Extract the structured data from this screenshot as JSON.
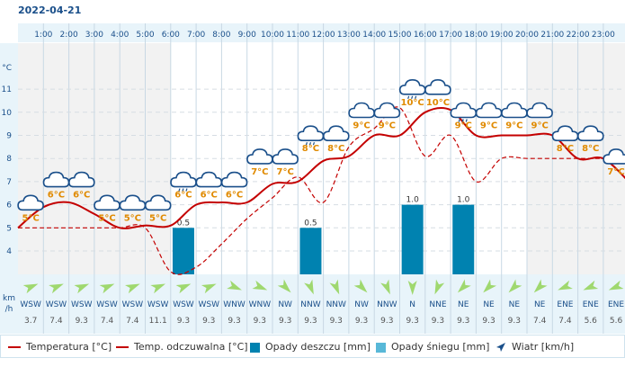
{
  "date": "2022-04-21",
  "colors": {
    "temperature": "#c40000",
    "feels_like": "#c40000",
    "rain": "#0082b0",
    "snow": "#58b8d8",
    "wind_arrow": "#9fd86f",
    "grid": "#c8d8e4",
    "axis_panel": "#e8f4fa",
    "label_temp": "#e08a00"
  },
  "chart_data": {
    "type": "line",
    "hours": [
      "1:00",
      "2:00",
      "3:00",
      "4:00",
      "5:00",
      "6:00",
      "7:00",
      "8:00",
      "9:00",
      "10:00",
      "11:00",
      "12:00",
      "13:00",
      "14:00",
      "15:00",
      "16:00",
      "17:00",
      "18:00",
      "19:00",
      "20:00",
      "21:00",
      "22:00",
      "23:00"
    ],
    "y_axis": {
      "unit": "°C",
      "ticks": [
        4,
        5,
        6,
        7,
        8,
        9,
        10,
        11
      ],
      "ylim": [
        3,
        12
      ]
    },
    "wind_unit": "km\n/h",
    "temperature": {
      "x": [
        0,
        1,
        2,
        3,
        4,
        5,
        6,
        7,
        8,
        9,
        10,
        11,
        12,
        13,
        14,
        15,
        16,
        17,
        18,
        19,
        20,
        21,
        22,
        23,
        24
      ],
      "y": [
        5.0,
        5.9,
        6.1,
        5.6,
        5.0,
        5.1,
        5.1,
        6.0,
        6.1,
        6.1,
        6.9,
        7.0,
        7.9,
        8.1,
        9.0,
        9.0,
        10.0,
        10.1,
        9.0,
        9.0,
        9.0,
        9.0,
        8.0,
        8.0,
        7.0
      ]
    },
    "feels_like": {
      "x": [
        0,
        1,
        2,
        3,
        4,
        5,
        6,
        7,
        8,
        9,
        10,
        11,
        12,
        13,
        14,
        15,
        16,
        17,
        18,
        19,
        20,
        21,
        22,
        23,
        24
      ],
      "y": [
        5.0,
        5.0,
        5.0,
        5.0,
        5.0,
        5.0,
        3.1,
        3.3,
        4.3,
        5.4,
        6.3,
        7.2,
        6.1,
        8.5,
        9.3,
        10.2,
        8.1,
        9.0,
        7.0,
        8.0,
        8.0,
        8.0,
        8.0,
        8.0,
        8.0
      ]
    },
    "icon_labels": [
      {
        "hour": 0.5,
        "text": "5°C",
        "temp": 5,
        "icon": "cloud"
      },
      {
        "hour": 1.5,
        "text": "6°C",
        "temp": 6,
        "icon": "cloud"
      },
      {
        "hour": 2.5,
        "text": "6°C",
        "temp": 6,
        "icon": "cloud"
      },
      {
        "hour": 3.5,
        "text": "5°C",
        "temp": 5,
        "icon": "cloud"
      },
      {
        "hour": 4.5,
        "text": "5°C",
        "temp": 5,
        "icon": "cloud"
      },
      {
        "hour": 5.5,
        "text": "5°C",
        "temp": 5,
        "icon": "cloud"
      },
      {
        "hour": 6.5,
        "text": "6°C",
        "temp": 6,
        "icon": "cloud-rain"
      },
      {
        "hour": 7.5,
        "text": "6°C",
        "temp": 6,
        "icon": "cloud"
      },
      {
        "hour": 8.5,
        "text": "6°C",
        "temp": 6,
        "icon": "cloud"
      },
      {
        "hour": 9.5,
        "text": "7°C",
        "temp": 7,
        "icon": "cloud"
      },
      {
        "hour": 10.5,
        "text": "7°C",
        "temp": 7,
        "icon": "cloud"
      },
      {
        "hour": 11.5,
        "text": "8°C",
        "temp": 8,
        "icon": "cloud-rain"
      },
      {
        "hour": 12.5,
        "text": "8°C",
        "temp": 8,
        "icon": "cloud"
      },
      {
        "hour": 13.5,
        "text": "9°C",
        "temp": 9,
        "icon": "cloud"
      },
      {
        "hour": 14.5,
        "text": "9°C",
        "temp": 9,
        "icon": "cloud"
      },
      {
        "hour": 15.5,
        "text": "10°C",
        "temp": 10,
        "icon": "cloud-rain"
      },
      {
        "hour": 16.5,
        "text": "10°C",
        "temp": 10,
        "icon": "cloud"
      },
      {
        "hour": 17.5,
        "text": "9°C",
        "temp": 9,
        "icon": "cloud-rain"
      },
      {
        "hour": 18.5,
        "text": "9°C",
        "temp": 9,
        "icon": "cloud"
      },
      {
        "hour": 19.5,
        "text": "9°C",
        "temp": 9,
        "icon": "cloud"
      },
      {
        "hour": 20.5,
        "text": "9°C",
        "temp": 9,
        "icon": "cloud"
      },
      {
        "hour": 21.5,
        "text": "8°C",
        "temp": 8,
        "icon": "cloud"
      },
      {
        "hour": 22.5,
        "text": "8°C",
        "temp": 8,
        "icon": "cloud"
      },
      {
        "hour": 23.5,
        "text": "7°C",
        "temp": 7,
        "icon": "cloud"
      }
    ],
    "precipitation": [
      {
        "hour": 6.5,
        "value": 0.5,
        "label": "0.5"
      },
      {
        "hour": 11.5,
        "value": 0.5,
        "label": "0.5"
      },
      {
        "hour": 15.5,
        "value": 1.0,
        "label": "1.0"
      },
      {
        "hour": 17.5,
        "value": 1.0,
        "label": "1.0"
      }
    ],
    "precipitation_scale": {
      "value": 1.0,
      "equals_degrees": 2
    },
    "wind": [
      {
        "dir": "WSW",
        "speed": "3.7"
      },
      {
        "dir": "WSW",
        "speed": "7.4"
      },
      {
        "dir": "WSW",
        "speed": "9.3"
      },
      {
        "dir": "WSW",
        "speed": "7.4"
      },
      {
        "dir": "WSW",
        "speed": "7.4"
      },
      {
        "dir": "WSW",
        "speed": "11.1"
      },
      {
        "dir": "WSW",
        "speed": "9.3"
      },
      {
        "dir": "WSW",
        "speed": "9.3"
      },
      {
        "dir": "WNW",
        "speed": "9.3"
      },
      {
        "dir": "WNW",
        "speed": "9.3"
      },
      {
        "dir": "NW",
        "speed": "9.3"
      },
      {
        "dir": "NNW",
        "speed": "9.3"
      },
      {
        "dir": "NNW",
        "speed": "9.3"
      },
      {
        "dir": "NW",
        "speed": "9.3"
      },
      {
        "dir": "NNW",
        "speed": "9.3"
      },
      {
        "dir": "N",
        "speed": "9.3"
      },
      {
        "dir": "NNE",
        "speed": "9.3"
      },
      {
        "dir": "NE",
        "speed": "9.3"
      },
      {
        "dir": "NE",
        "speed": "9.3"
      },
      {
        "dir": "NE",
        "speed": "9.3"
      },
      {
        "dir": "NE",
        "speed": "7.4"
      },
      {
        "dir": "ENE",
        "speed": "7.4"
      },
      {
        "dir": "ENE",
        "speed": "5.6"
      },
      {
        "dir": "ENE",
        "speed": "5.6"
      }
    ],
    "legend": {
      "temperature": "Temperatura [°C]",
      "feels_like": "Temp. odczuwalna [°C]",
      "rain": "Opady deszczu [mm]",
      "snow": "Opady śniegu [mm]",
      "wind": "Wiatr [km/h]"
    }
  }
}
